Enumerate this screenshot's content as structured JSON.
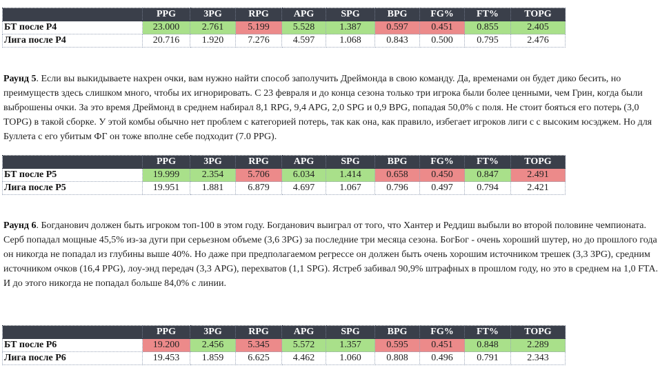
{
  "headers": [
    "PPG",
    "3PG",
    "RPG",
    "APG",
    "SPG",
    "BPG",
    "FG%",
    "FT%",
    "TOPG"
  ],
  "tables": [
    {
      "rows": [
        {
          "label": "БТ после Р4",
          "values": [
            "23.000",
            "2.761",
            "5.199",
            "5.528",
            "1.387",
            "0.597",
            "0.451",
            "0.855",
            "2.405"
          ],
          "colors": [
            "g",
            "g",
            "r",
            "g",
            "g",
            "r",
            "r",
            "g",
            "g"
          ]
        },
        {
          "label": "Лига после Р4",
          "values": [
            "20.716",
            "1.920",
            "7.276",
            "4.597",
            "1.068",
            "0.843",
            "0.500",
            "0.795",
            "2.476"
          ],
          "colors": [
            "w",
            "w",
            "w",
            "w",
            "w",
            "w",
            "w",
            "w",
            "w"
          ]
        }
      ]
    },
    {
      "rows": [
        {
          "label": "БТ после Р5",
          "values": [
            "19.999",
            "2.354",
            "5.706",
            "6.034",
            "1.414",
            "0.658",
            "0.450",
            "0.847",
            "2.491"
          ],
          "colors": [
            "g",
            "g",
            "r",
            "g",
            "g",
            "r",
            "r",
            "g",
            "r"
          ]
        },
        {
          "label": "Лига после Р5",
          "values": [
            "19.951",
            "1.881",
            "6.879",
            "4.697",
            "1.067",
            "0.796",
            "0.497",
            "0.794",
            "2.421"
          ],
          "colors": [
            "w",
            "w",
            "w",
            "w",
            "w",
            "w",
            "w",
            "w",
            "w"
          ]
        }
      ]
    },
    {
      "rows": [
        {
          "label": "БТ после Р6",
          "values": [
            "19.200",
            "2.456",
            "5.345",
            "5.572",
            "1.357",
            "0.595",
            "0.451",
            "0.848",
            "2.289"
          ],
          "colors": [
            "r",
            "g",
            "r",
            "g",
            "g",
            "r",
            "r",
            "g",
            "g"
          ]
        },
        {
          "label": "Лига после Р6",
          "values": [
            "19.453",
            "1.859",
            "6.625",
            "4.462",
            "1.060",
            "0.808",
            "0.496",
            "0.791",
            "2.343"
          ],
          "colors": [
            "w",
            "w",
            "w",
            "w",
            "w",
            "w",
            "w",
            "w",
            "w"
          ]
        }
      ]
    }
  ],
  "round5": {
    "title": "Раунд 5",
    "text": ". Если вы выкидываете нахрен очки, вам нужно найти способ заполучить Дреймонда в свою команду. Да, временами он будет дико бесить, но преимуществ здесь слишком много, чтобы их игнорировать. С 23 февраля и до конца сезона только три игрока были более ценными, чем Грин, когда были выброшены очки. За это время Дреймонд в среднем набирал 8,1 RPG, 9,4 APG, 2,0 SPG и 0,9 BPG, попадая 50,0% с поля. Не стоит бояться его потерь (3,0 TOPG) в такой сборке. У этой комбы обычно нет проблем с категорией потерь, так как она, как правило, избегает игроков лиги с с высоким юсэджем. Но для Буллета с его убитым ФГ он тоже вполне себе подходит (7.0 PPG)."
  },
  "round6": {
    "title": "Раунд 6",
    "text": ". Богданович должен быть игроком топ-100 в этом году. Богданович выиграл от того, что Хантер и Реддиш выбыли во второй половине чемпионата. Серб попадал мощные 45,5% из-за дуги при  серьезном объеме (3,6 3PG) за последние три месяца сезона. БогБог - очень хороший шутер,  но до прошлого года он никогда не попадал из глубины выше 40%. Но даже при предполагаемом регрессе он должен быть очень хорошим источником трешек (3,3 3PG), средним источником очков (16,4 PPG), лоу-энд передач (3,3 APG), перехватов (1,1 SPG). Ястреб забивал 90,9% штрафных в прошлом году,  но это в среднем на 1,0 FTA.  И до этого никогда не попадал больше  84,0% с линии."
  }
}
